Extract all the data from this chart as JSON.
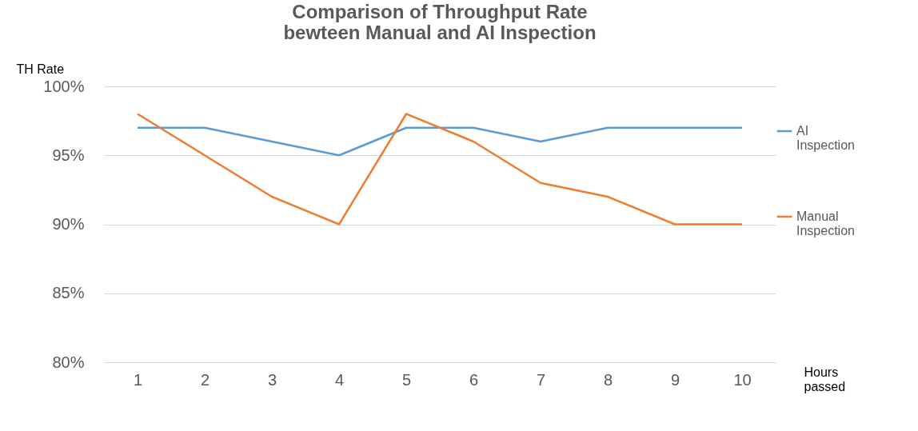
{
  "chart_data": {
    "type": "line",
    "title": "Comparison of Throughput Rate bewteen Manual and AI Inspection",
    "xlabel": "Hours passed",
    "ylabel": "TH Rate",
    "categories": [
      "1",
      "2",
      "3",
      "4",
      "5",
      "6",
      "7",
      "8",
      "9",
      "10"
    ],
    "series": [
      {
        "name": "AI Inspection",
        "color": "#5b9bd5",
        "values": [
          97,
          97,
          96,
          95,
          97,
          97,
          96,
          97,
          97,
          97
        ]
      },
      {
        "name": "Manual Inspection",
        "color": "#ed7d31",
        "values": [
          98,
          95,
          92,
          90,
          98,
          96,
          93,
          92,
          90,
          90
        ]
      }
    ],
    "ylim": [
      80,
      100
    ],
    "yticks": [
      {
        "value": 80,
        "label": "80%"
      },
      {
        "value": 85,
        "label": "85%"
      },
      {
        "value": 90,
        "label": "90%"
      },
      {
        "value": 95,
        "label": "95%"
      },
      {
        "value": 100,
        "label": "100%"
      }
    ],
    "grid": "y",
    "legend": "right",
    "marker": "none",
    "line_style": "solid"
  }
}
